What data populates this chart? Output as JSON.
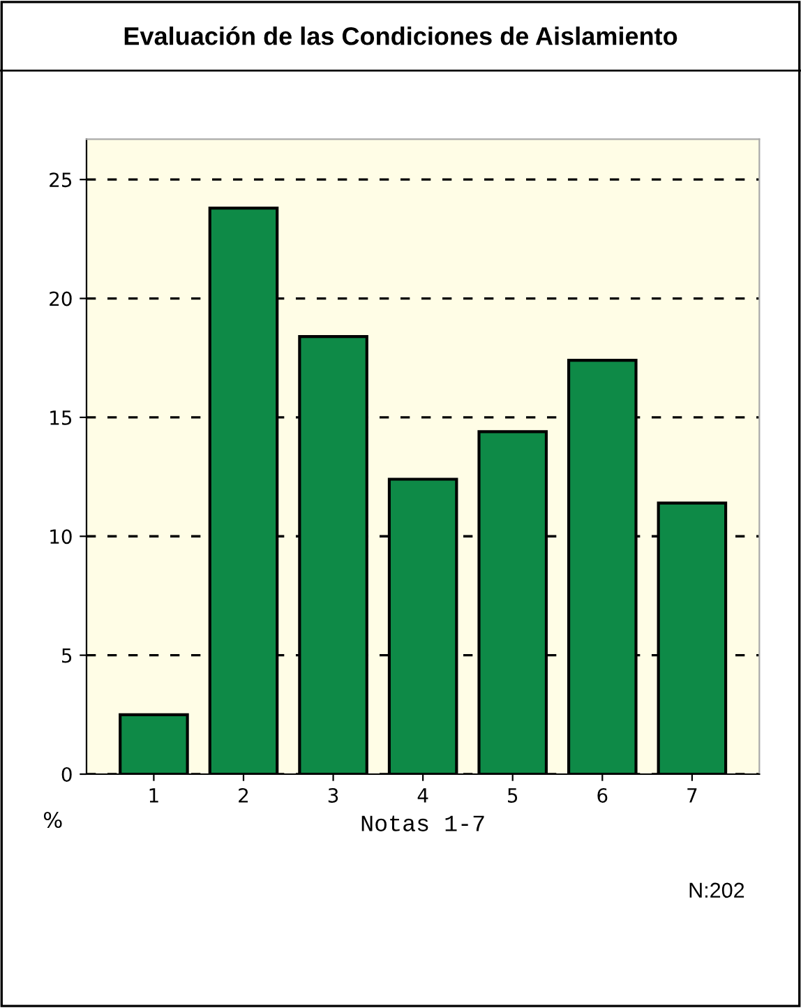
{
  "chart_data": {
    "type": "bar",
    "title": "Evaluación de las Condiciones de Aislamiento",
    "categories": [
      "1",
      "2",
      "3",
      "4",
      "5",
      "6",
      "7"
    ],
    "values": [
      2.5,
      23.8,
      18.4,
      12.4,
      14.4,
      17.4,
      11.4
    ],
    "color": "#0e8a47",
    "xlabel": "Notas 1-7",
    "ylabel": "%",
    "ylim": [
      0,
      26.7
    ],
    "yticks": [
      0,
      5,
      10,
      15,
      20,
      25
    ],
    "grid": "y",
    "line_style": "dashed",
    "annotations": [
      "N:202"
    ]
  }
}
